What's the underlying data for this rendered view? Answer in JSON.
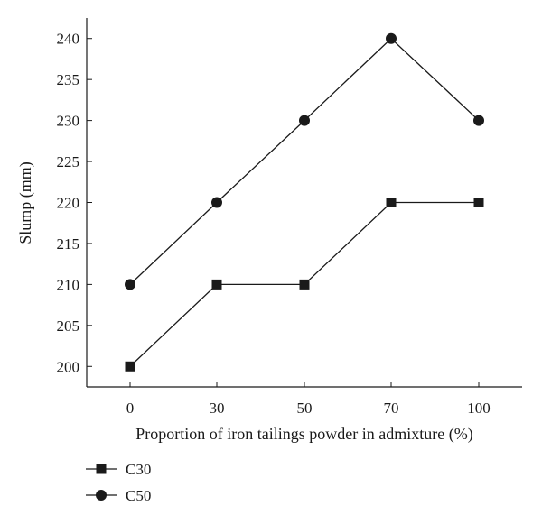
{
  "chart_data": {
    "type": "line",
    "title": "",
    "xlabel": "Proportion of iron tailings powder in admixture (%)",
    "ylabel": "Slump (mm)",
    "categories": [
      "0",
      "30",
      "50",
      "70",
      "100"
    ],
    "ylim": [
      197.5,
      242.5
    ],
    "yticks": [
      "200",
      "205",
      "210",
      "215",
      "220",
      "225",
      "230",
      "235",
      "240"
    ],
    "grid": false,
    "legend_position": "bottom-left",
    "series": [
      {
        "name": "C30",
        "marker": "square",
        "color": "#1a1a1a",
        "values": [
          200,
          210,
          210,
          220,
          220
        ]
      },
      {
        "name": "C50",
        "marker": "circle",
        "color": "#1a1a1a",
        "values": [
          210,
          220,
          230,
          240,
          230
        ]
      }
    ]
  }
}
